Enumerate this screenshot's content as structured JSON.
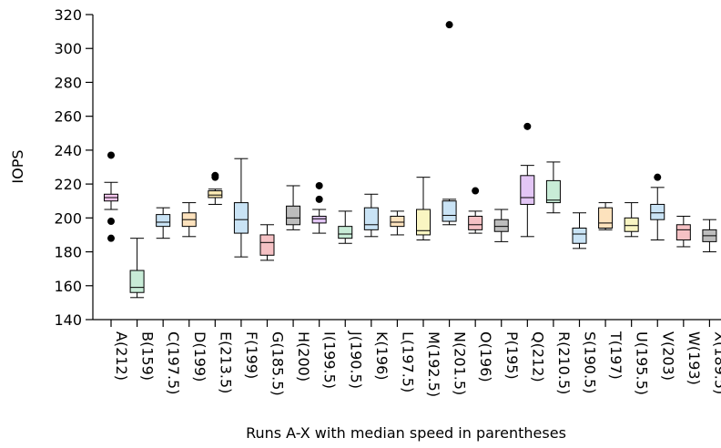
{
  "chart_data": {
    "type": "box",
    "title": "",
    "xlabel": "Runs A-X with median speed in parentheses",
    "ylabel": "IOPS",
    "ylim": [
      140,
      320
    ],
    "yticks": [
      140,
      160,
      180,
      200,
      220,
      240,
      260,
      280,
      300,
      320
    ],
    "grid": false,
    "series": [
      {
        "category": "A(212)",
        "color": "#f5c6ee",
        "whislo": 205,
        "q1": 210,
        "med": 212,
        "q3": 214,
        "whishi": 221,
        "fliers": [
          237,
          198,
          188
        ]
      },
      {
        "category": "B(159)",
        "color": "#c8ecd7",
        "whislo": 153,
        "q1": 156,
        "med": 159,
        "q3": 169,
        "whishi": 188,
        "fliers": []
      },
      {
        "category": "C(197.5)",
        "color": "#c9e3f5",
        "whislo": 188,
        "q1": 195,
        "med": 197.5,
        "q3": 202,
        "whishi": 206,
        "fliers": []
      },
      {
        "category": "D(199)",
        "color": "#fde2bd",
        "whislo": 189,
        "q1": 195,
        "med": 199,
        "q3": 203,
        "whishi": 209,
        "fliers": []
      },
      {
        "category": "E(213.5)",
        "color": "#fbeab5",
        "whislo": 208,
        "q1": 212,
        "med": 213.5,
        "q3": 216,
        "whishi": 217,
        "fliers": [
          224,
          225
        ]
      },
      {
        "category": "F(199)",
        "color": "#c9e3f5",
        "whislo": 177,
        "q1": 191,
        "med": 199,
        "q3": 209,
        "whishi": 235,
        "fliers": []
      },
      {
        "category": "G(185.5)",
        "color": "#f5c1c4",
        "whislo": 175,
        "q1": 178,
        "med": 185.5,
        "q3": 190,
        "whishi": 196,
        "fliers": []
      },
      {
        "category": "H(200)",
        "color": "#bdbdbd",
        "whislo": 193,
        "q1": 196,
        "med": 200,
        "q3": 207,
        "whishi": 219,
        "fliers": []
      },
      {
        "category": "I(199.5)",
        "color": "#e3c6f5",
        "whislo": 191,
        "q1": 197,
        "med": 199.5,
        "q3": 201,
        "whishi": 205,
        "fliers": [
          219,
          211
        ]
      },
      {
        "category": "J(190.5)",
        "color": "#c8ecd7",
        "whislo": 185,
        "q1": 188,
        "med": 190.5,
        "q3": 195,
        "whishi": 204,
        "fliers": []
      },
      {
        "category": "K(196)",
        "color": "#c9e3f5",
        "whislo": 189,
        "q1": 193,
        "med": 196,
        "q3": 206,
        "whishi": 214,
        "fliers": []
      },
      {
        "category": "L(197.5)",
        "color": "#fde2bd",
        "whislo": 190,
        "q1": 195,
        "med": 197.5,
        "q3": 201,
        "whishi": 204,
        "fliers": []
      },
      {
        "category": "M(192.5)",
        "color": "#f9f5c2",
        "whislo": 187,
        "q1": 190,
        "med": 192.5,
        "q3": 205,
        "whishi": 224,
        "fliers": []
      },
      {
        "category": "N(201.5)",
        "color": "#c9e3f5",
        "whislo": 196,
        "q1": 198,
        "med": 201.5,
        "q3": 210,
        "whishi": 211,
        "fliers": [
          314
        ]
      },
      {
        "category": "O(196)",
        "color": "#f5c1c4",
        "whislo": 191,
        "q1": 193,
        "med": 196,
        "q3": 201,
        "whishi": 204,
        "fliers": [
          216
        ]
      },
      {
        "category": "P(195)",
        "color": "#bdbdbd",
        "whislo": 186,
        "q1": 192,
        "med": 195,
        "q3": 199,
        "whishi": 205,
        "fliers": []
      },
      {
        "category": "Q(212)",
        "color": "#e3c6f5",
        "whislo": 189,
        "q1": 208,
        "med": 212,
        "q3": 225,
        "whishi": 231,
        "fliers": [
          254
        ]
      },
      {
        "category": "R(210.5)",
        "color": "#c8ecd7",
        "whislo": 203,
        "q1": 209,
        "med": 210.5,
        "q3": 222,
        "whishi": 233,
        "fliers": []
      },
      {
        "category": "S(190.5)",
        "color": "#c9e3f5",
        "whislo": 182,
        "q1": 185,
        "med": 190.5,
        "q3": 194,
        "whishi": 203,
        "fliers": []
      },
      {
        "category": "T(197)",
        "color": "#fde2bd",
        "whislo": 193,
        "q1": 194,
        "med": 197,
        "q3": 206,
        "whishi": 209,
        "fliers": []
      },
      {
        "category": "U(195.5)",
        "color": "#f9f5c2",
        "whislo": 189,
        "q1": 192,
        "med": 195.5,
        "q3": 200,
        "whishi": 209,
        "fliers": []
      },
      {
        "category": "V(203)",
        "color": "#c9e3f5",
        "whislo": 187,
        "q1": 199,
        "med": 203,
        "q3": 208,
        "whishi": 218,
        "fliers": [
          224
        ]
      },
      {
        "category": "W(193)",
        "color": "#f5c1c4",
        "whislo": 183,
        "q1": 187,
        "med": 193,
        "q3": 196,
        "whishi": 201,
        "fliers": []
      },
      {
        "category": "X(189.5)",
        "color": "#bdbdbd",
        "whislo": 180,
        "q1": 186,
        "med": 189.5,
        "q3": 193,
        "whishi": 199,
        "fliers": []
      }
    ]
  }
}
